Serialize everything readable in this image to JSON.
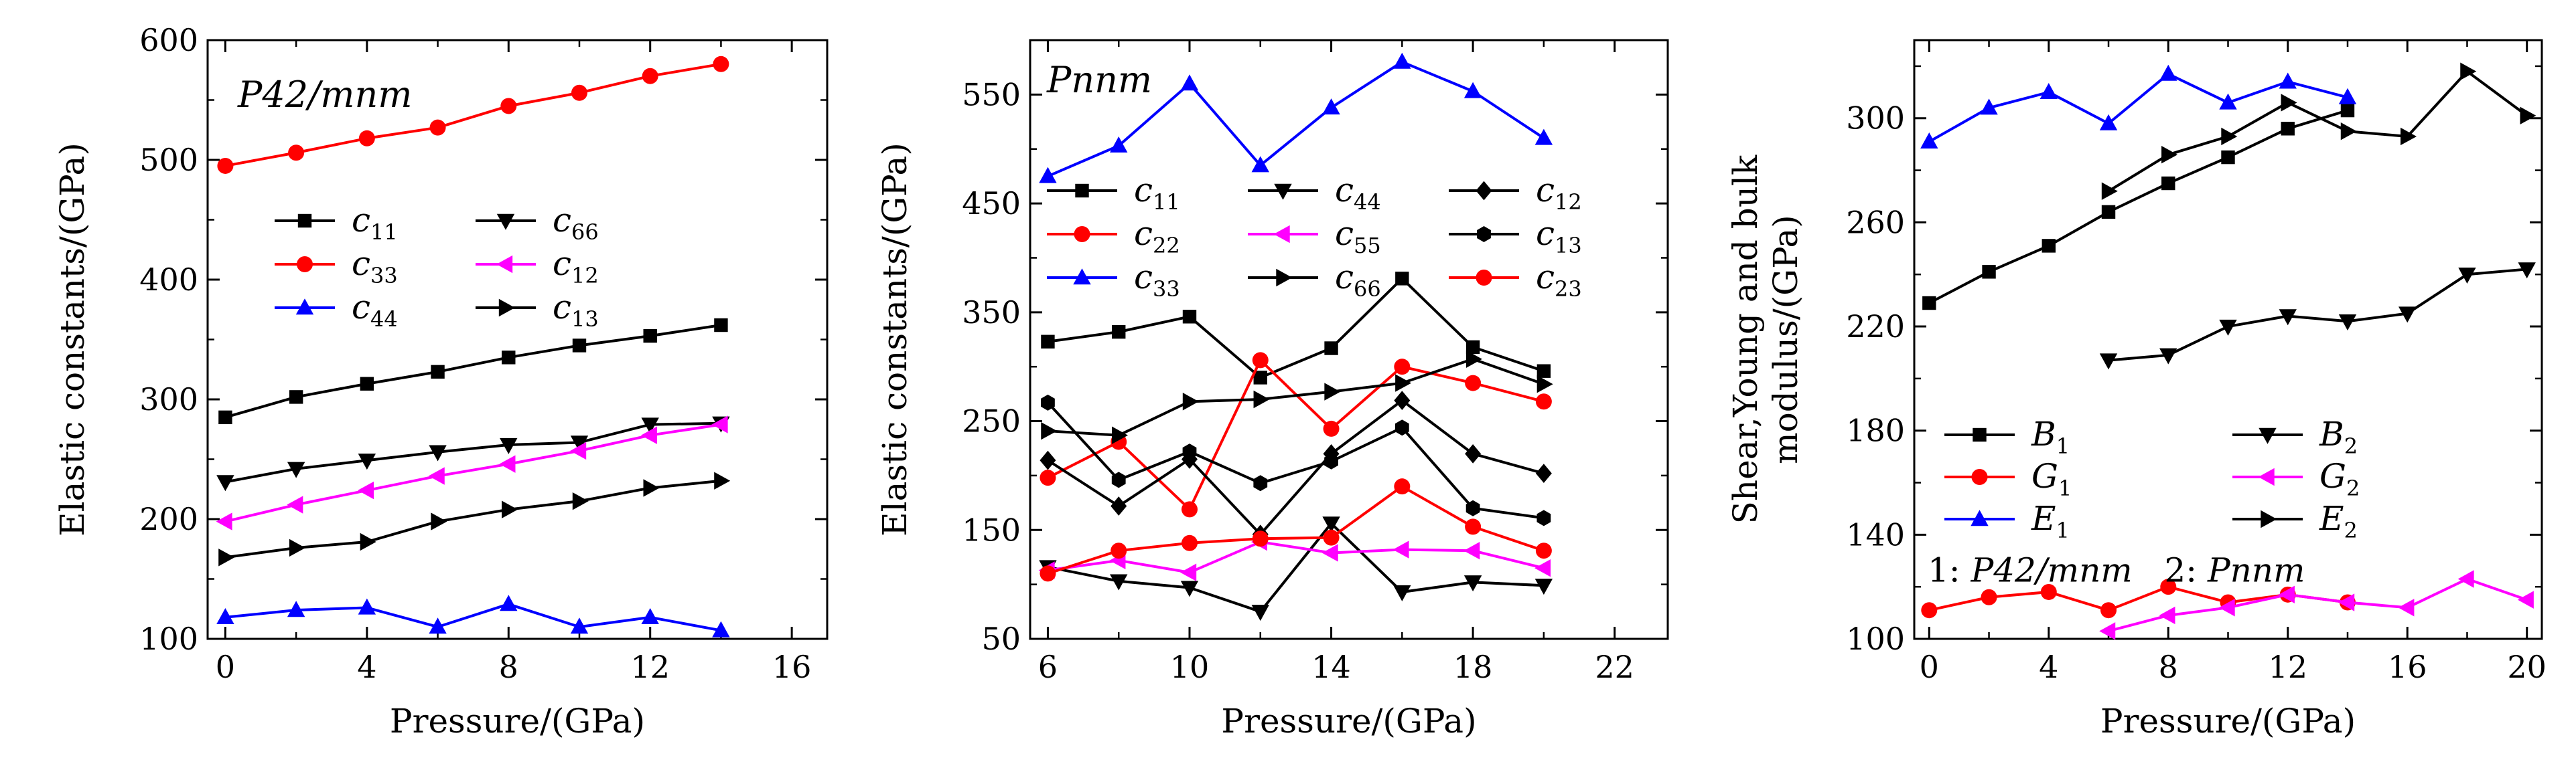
{
  "chart_data": [
    {
      "type": "line",
      "title": "P42/mnm",
      "xlabel": "Pressure/(GPa)",
      "ylabel": "Elastic constants/(GPa)",
      "xlim": [
        -0.5,
        17
      ],
      "ylim": [
        100,
        600
      ],
      "xticks": [
        0,
        4,
        8,
        12,
        16
      ],
      "yticks": [
        100,
        200,
        300,
        400,
        500,
        600
      ],
      "series": [
        {
          "name": "c11",
          "label": "c",
          "sub": "11",
          "color": "#000000",
          "marker": "square",
          "x": [
            0,
            2,
            4,
            6,
            8,
            10,
            12,
            14
          ],
          "values": [
            285,
            302,
            313,
            323,
            335,
            345,
            353,
            362
          ]
        },
        {
          "name": "c33",
          "label": "c",
          "sub": "33",
          "color": "#ff0000",
          "marker": "circle",
          "x": [
            0,
            2,
            4,
            6,
            8,
            10,
            12,
            14
          ],
          "values": [
            495,
            506,
            518,
            527,
            545,
            556,
            570,
            580
          ]
        },
        {
          "name": "c44",
          "label": "c",
          "sub": "44",
          "color": "#0000ff",
          "marker": "triangle-up",
          "x": [
            0,
            2,
            4,
            6,
            8,
            10,
            12,
            14
          ],
          "values": [
            118,
            124,
            126,
            110,
            129,
            110,
            118,
            107
          ]
        },
        {
          "name": "c66",
          "label": "c",
          "sub": "66",
          "color": "#000000",
          "marker": "triangle-down",
          "x": [
            0,
            2,
            4,
            6,
            8,
            10,
            12,
            14
          ],
          "values": [
            231,
            242,
            249,
            256,
            262,
            264,
            279,
            280
          ]
        },
        {
          "name": "c12",
          "label": "c",
          "sub": "12",
          "color": "#ff00ff",
          "marker": "triangle-left",
          "x": [
            0,
            2,
            4,
            6,
            8,
            10,
            12,
            14
          ],
          "values": [
            198,
            212,
            224,
            236,
            246,
            257,
            270,
            279
          ]
        },
        {
          "name": "c13",
          "label": "c",
          "sub": "13",
          "color": "#000000",
          "marker": "triangle-right",
          "x": [
            0,
            2,
            4,
            6,
            8,
            10,
            12,
            14
          ],
          "values": [
            168,
            176,
            181,
            198,
            208,
            215,
            226,
            232
          ]
        }
      ],
      "legend_order": [
        "c11",
        "c66",
        "c33",
        "c12",
        "c44",
        "c13"
      ]
    },
    {
      "type": "line",
      "title": "Pnnm",
      "xlabel": "Pressure/(GPa)",
      "ylabel": "Elastic constants/(GPa)",
      "xlim": [
        5.5,
        23.5
      ],
      "ylim": [
        50,
        600
      ],
      "xticks": [
        6,
        10,
        14,
        18,
        22
      ],
      "yticks": [
        50,
        150,
        250,
        350,
        450,
        550
      ],
      "series": [
        {
          "name": "c11",
          "label": "c",
          "sub": "11",
          "color": "#000000",
          "marker": "square",
          "x": [
            6,
            8,
            10,
            12,
            14,
            16,
            18,
            20
          ],
          "values": [
            323,
            332,
            346,
            290,
            317,
            381,
            318,
            296
          ]
        },
        {
          "name": "c22",
          "label": "c",
          "sub": "22",
          "color": "#ff0000",
          "marker": "circle",
          "x": [
            6,
            8,
            10,
            12,
            14,
            16,
            18,
            20
          ],
          "values": [
            198,
            231,
            169,
            306,
            243,
            300,
            285,
            268
          ]
        },
        {
          "name": "c33",
          "label": "c",
          "sub": "33",
          "color": "#0000ff",
          "marker": "triangle-up",
          "x": [
            6,
            8,
            10,
            12,
            14,
            16,
            18,
            20
          ],
          "values": [
            475,
            503,
            560,
            485,
            538,
            580,
            553,
            510
          ]
        },
        {
          "name": "c44",
          "label": "c",
          "sub": "44",
          "color": "#000000",
          "marker": "triangle-down",
          "x": [
            6,
            8,
            10,
            12,
            14,
            16,
            18,
            20
          ],
          "values": [
            116,
            103,
            97,
            75,
            156,
            93,
            102,
            99
          ]
        },
        {
          "name": "c55",
          "label": "c",
          "sub": "55",
          "color": "#ff00ff",
          "marker": "triangle-left",
          "x": [
            6,
            8,
            10,
            12,
            14,
            16,
            18,
            20
          ],
          "values": [
            113,
            122,
            111,
            139,
            129,
            132,
            131,
            115
          ]
        },
        {
          "name": "c66",
          "label": "c",
          "sub": "66",
          "color": "#000000",
          "marker": "triangle-right",
          "x": [
            6,
            8,
            10,
            12,
            14,
            16,
            18,
            20
          ],
          "values": [
            241,
            237,
            268,
            270,
            277,
            285,
            307,
            284
          ]
        },
        {
          "name": "c12",
          "label": "c",
          "sub": "12",
          "color": "#000000",
          "marker": "diamond",
          "x": [
            6,
            8,
            10,
            12,
            14,
            16,
            18,
            20
          ],
          "values": [
            214,
            172,
            215,
            146,
            220,
            269,
            220,
            202
          ]
        },
        {
          "name": "c13",
          "label": "c",
          "sub": "13",
          "color": "#000000",
          "marker": "hexagon",
          "x": [
            6,
            8,
            10,
            12,
            14,
            16,
            18,
            20
          ],
          "values": [
            267,
            196,
            222,
            193,
            213,
            244,
            170,
            161
          ]
        },
        {
          "name": "c23",
          "label": "c",
          "sub": "23",
          "color": "#ff0000",
          "marker": "circle",
          "x": [
            6,
            8,
            10,
            12,
            14,
            16,
            18,
            20
          ],
          "values": [
            110,
            131,
            138,
            142,
            143,
            190,
            153,
            131
          ]
        }
      ],
      "legend_order": [
        "c11",
        "c44",
        "c12",
        "c22",
        "c55",
        "c13",
        "c33",
        "c66",
        "c23"
      ]
    },
    {
      "type": "line",
      "title": "",
      "xlabel": "Pressure/(GPa)",
      "ylabel_line1": "Shear,Young and bulk",
      "ylabel_line2": "modulus/(GPa)",
      "xlim": [
        -0.5,
        20.5
      ],
      "ylim": [
        100,
        330
      ],
      "xticks": [
        0,
        4,
        8,
        12,
        16,
        20
      ],
      "xtick_minor": [
        2,
        6,
        10,
        14,
        18
      ],
      "yticks": [
        100,
        140,
        180,
        220,
        260,
        300
      ],
      "series": [
        {
          "name": "B1",
          "label": "B",
          "sub": "1",
          "color": "#000000",
          "marker": "square",
          "x": [
            0,
            2,
            4,
            6,
            8,
            10,
            12,
            14
          ],
          "values": [
            229,
            241,
            251,
            264,
            275,
            285,
            296,
            303
          ]
        },
        {
          "name": "G1",
          "label": "G",
          "sub": "1",
          "color": "#ff0000",
          "marker": "circle",
          "x": [
            0,
            2,
            4,
            6,
            8,
            10,
            12,
            14
          ],
          "values": [
            111,
            116,
            118,
            111,
            120,
            114,
            117,
            114
          ]
        },
        {
          "name": "E1",
          "label": "E",
          "sub": "1",
          "color": "#0000ff",
          "marker": "triangle-up",
          "x": [
            0,
            2,
            4,
            6,
            8,
            10,
            12,
            14
          ],
          "values": [
            291,
            304,
            310,
            298,
            317,
            306,
            314,
            308
          ]
        },
        {
          "name": "B2",
          "label": "B",
          "sub": "2",
          "color": "#000000",
          "marker": "triangle-down",
          "x": [
            6,
            8,
            10,
            12,
            14,
            16,
            18,
            20
          ],
          "values": [
            207,
            209,
            220,
            224,
            222,
            225,
            240,
            242
          ]
        },
        {
          "name": "G2",
          "label": "G",
          "sub": "2",
          "color": "#ff00ff",
          "marker": "triangle-left",
          "x": [
            6,
            8,
            10,
            12,
            14,
            16,
            18,
            20
          ],
          "values": [
            103,
            109,
            112,
            117,
            114,
            112,
            123,
            115
          ]
        },
        {
          "name": "E2",
          "label": "E",
          "sub": "2",
          "color": "#000000",
          "marker": "triangle-right",
          "x": [
            6,
            8,
            10,
            12,
            14,
            16,
            18,
            20
          ],
          "values": [
            272,
            286,
            293,
            306,
            295,
            293,
            318,
            301
          ]
        }
      ],
      "legend_order": [
        "B1",
        "B2",
        "G1",
        "G2",
        "E1",
        "E2"
      ],
      "annotation": {
        "prefix1": "1: ",
        "phase1": "P42/mnm",
        "prefix2": "2: ",
        "phase2": "Pnnm"
      }
    }
  ]
}
